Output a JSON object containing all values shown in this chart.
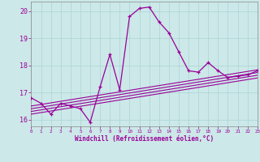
{
  "xlabel": "Windchill (Refroidissement éolien,°C)",
  "bg_color": "#cce8e8",
  "line_color": "#990099",
  "x_values": [
    0,
    1,
    2,
    3,
    4,
    5,
    6,
    7,
    8,
    9,
    10,
    11,
    12,
    13,
    14,
    15,
    16,
    17,
    18,
    19,
    20,
    21,
    22,
    23
  ],
  "main_line": [
    16.8,
    16.6,
    16.2,
    16.6,
    16.5,
    16.4,
    15.9,
    17.2,
    18.4,
    17.1,
    19.8,
    20.1,
    20.15,
    19.6,
    19.2,
    18.5,
    17.8,
    17.75,
    18.1,
    17.8,
    17.55,
    17.6,
    17.65,
    17.8
  ],
  "regression_lines": [
    {
      "slope": 0.058,
      "intercept": 16.2
    },
    {
      "slope": 0.058,
      "intercept": 16.3
    },
    {
      "slope": 0.058,
      "intercept": 16.4
    },
    {
      "slope": 0.058,
      "intercept": 16.5
    }
  ],
  "ylim": [
    15.75,
    20.35
  ],
  "xlim": [
    0,
    23
  ],
  "yticks": [
    16,
    17,
    18,
    19,
    20
  ],
  "xticks": [
    0,
    1,
    2,
    3,
    4,
    5,
    6,
    7,
    8,
    9,
    10,
    11,
    12,
    13,
    14,
    15,
    16,
    17,
    18,
    19,
    20,
    21,
    22,
    23
  ]
}
